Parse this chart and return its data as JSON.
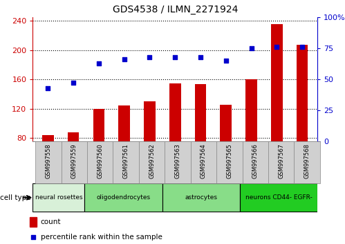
{
  "title": "GDS4538 / ILMN_2271924",
  "samples": [
    "GSM997558",
    "GSM997559",
    "GSM997560",
    "GSM997561",
    "GSM997562",
    "GSM997563",
    "GSM997564",
    "GSM997565",
    "GSM997566",
    "GSM997567",
    "GSM997568"
  ],
  "count_values": [
    84,
    88,
    120,
    124,
    130,
    154,
    153,
    125,
    160,
    235,
    207
  ],
  "percentile_values": [
    43,
    47,
    63,
    66,
    68,
    68,
    68,
    65,
    75,
    76,
    76
  ],
  "ylim_left": [
    75,
    245
  ],
  "ylim_right": [
    0,
    100
  ],
  "yticks_left": [
    80,
    120,
    160,
    200,
    240
  ],
  "yticks_right": [
    0,
    25,
    50,
    75,
    100
  ],
  "group_spans": [
    {
      "start": 0,
      "end": 2,
      "label": "neural rosettes",
      "color": "#d8f0d8"
    },
    {
      "start": 2,
      "end": 5,
      "label": "oligodendrocytes",
      "color": "#88dd88"
    },
    {
      "start": 5,
      "end": 8,
      "label": "astrocytes",
      "color": "#88dd88"
    },
    {
      "start": 8,
      "end": 11,
      "label": "neurons CD44- EGFR-",
      "color": "#22cc22"
    }
  ],
  "bar_color": "#cc0000",
  "scatter_color": "#0000cc",
  "bar_width": 0.45,
  "left_axis_color": "#cc0000",
  "right_axis_color": "#0000cc",
  "legend_count_label": "count",
  "legend_percentile_label": "percentile rank within the sample",
  "cell_type_label": "cell type",
  "bg_color": "#ffffff",
  "xticklabel_bg": "#d0d0d0",
  "xticklabel_border": "#888888"
}
